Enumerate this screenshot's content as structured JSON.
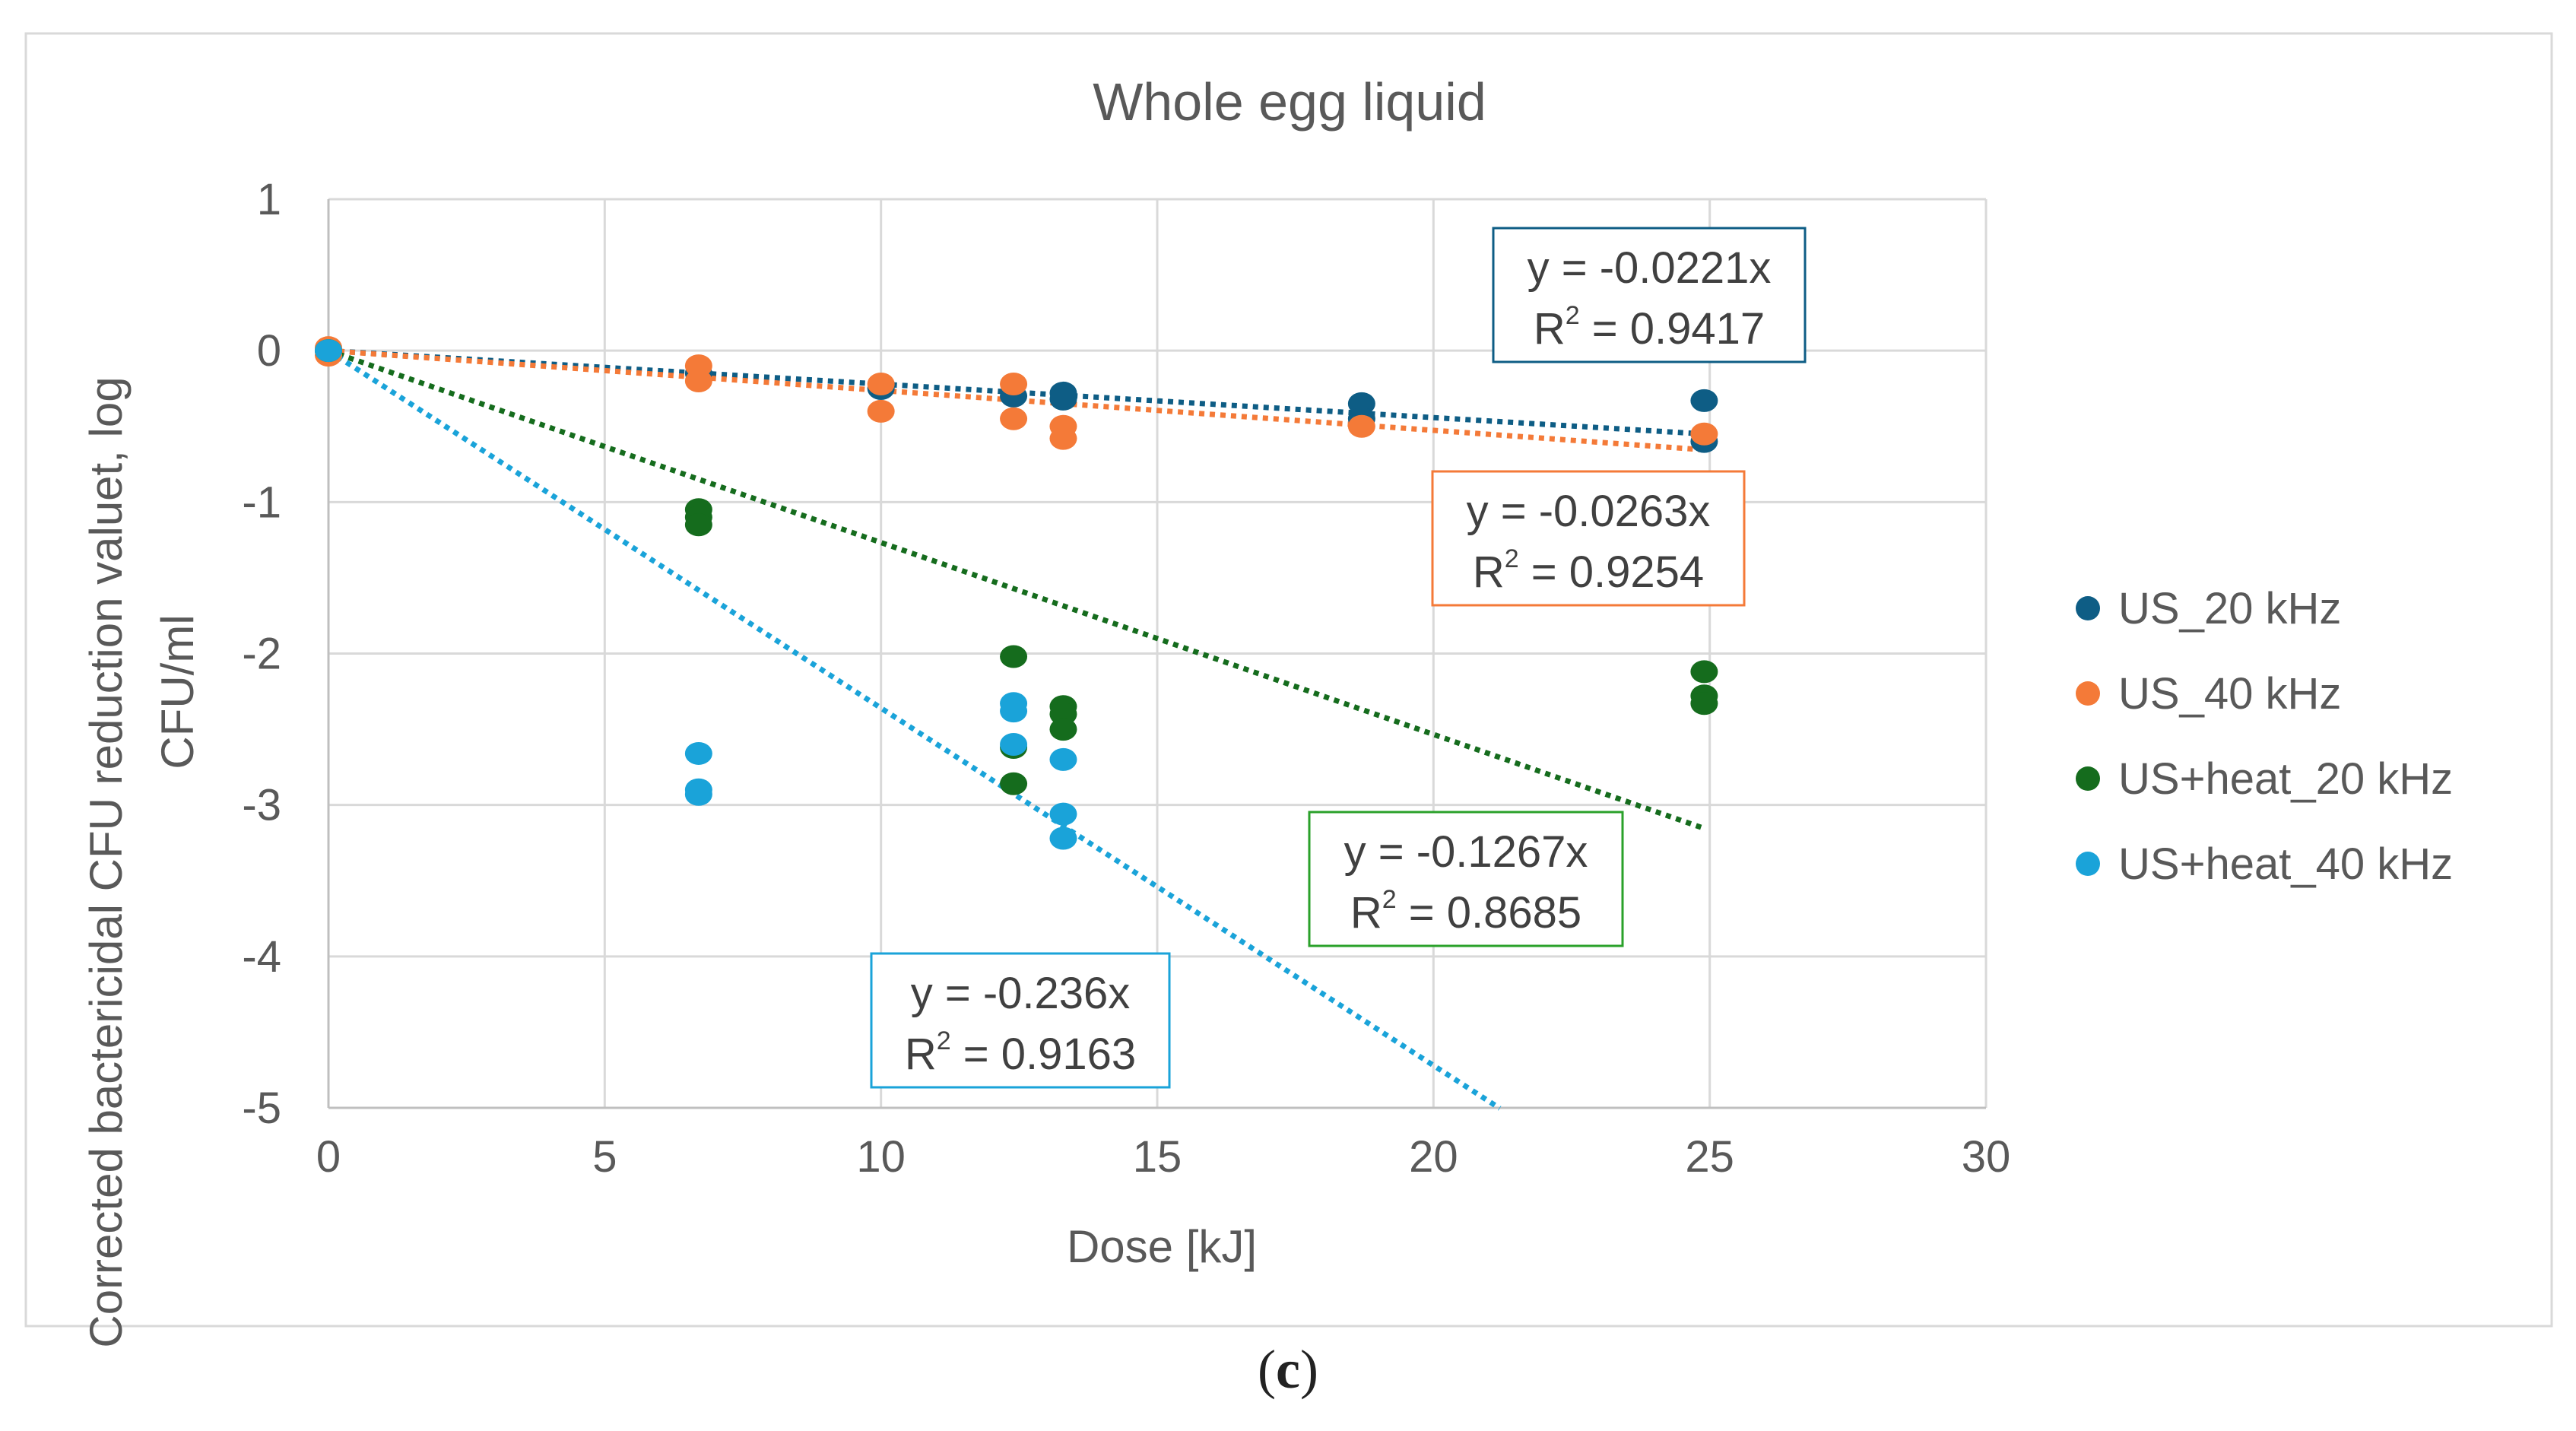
{
  "chart_data": {
    "type": "scatter",
    "title": "Whole egg liquid",
    "xlabel": "Dose [kJ]",
    "ylabel_lines": [
      "Corrected bactericidal CFU reduction valuet, log",
      "CFU/ml"
    ],
    "xlim": [
      0,
      30
    ],
    "ylim": [
      -5,
      1
    ],
    "xticks": [
      "0",
      "5",
      "10",
      "15",
      "20",
      "25",
      "30"
    ],
    "yticks": [
      "1",
      "0",
      "-1",
      "-2",
      "-3",
      "-4",
      "-5"
    ],
    "grid": true,
    "legend_position": "right",
    "series": [
      {
        "name": "US_20 kHz",
        "color": "#0e5d85",
        "slope": -0.0221,
        "trend_end_x": 24.9,
        "points": [
          [
            0,
            0
          ],
          [
            6.7,
            -0.15
          ],
          [
            10.0,
            -0.25
          ],
          [
            12.4,
            -0.3
          ],
          [
            13.3,
            -0.28
          ],
          [
            13.3,
            -0.32
          ],
          [
            18.7,
            -0.35
          ],
          [
            18.7,
            -0.45
          ],
          [
            24.9,
            -0.33
          ],
          [
            24.9,
            -0.6
          ]
        ],
        "eq_line": "y = -0.0221x",
        "r2_value": "0.9417"
      },
      {
        "name": "US_40 kHz",
        "color": "#f47a38",
        "slope": -0.0263,
        "trend_end_x": 24.9,
        "points": [
          [
            0,
            0.02
          ],
          [
            0,
            -0.03
          ],
          [
            6.7,
            -0.1
          ],
          [
            6.7,
            -0.2
          ],
          [
            10.0,
            -0.22
          ],
          [
            10.0,
            -0.4
          ],
          [
            12.4,
            -0.22
          ],
          [
            12.4,
            -0.45
          ],
          [
            13.3,
            -0.5
          ],
          [
            13.3,
            -0.58
          ],
          [
            18.7,
            -0.5
          ],
          [
            24.9,
            -0.55
          ]
        ],
        "eq_line": "y = -0.0263x",
        "r2_value": "0.9254"
      },
      {
        "name": "US+heat_20 kHz",
        "color": "#156c1d",
        "slope": -0.1267,
        "trend_end_x": 24.9,
        "points": [
          [
            0,
            0
          ],
          [
            6.7,
            -1.05
          ],
          [
            6.7,
            -1.1
          ],
          [
            6.7,
            -1.15
          ],
          [
            12.4,
            -2.02
          ],
          [
            12.4,
            -2.62
          ],
          [
            12.4,
            -2.86
          ],
          [
            13.3,
            -2.35
          ],
          [
            13.3,
            -2.4
          ],
          [
            13.3,
            -2.5
          ],
          [
            24.9,
            -2.12
          ],
          [
            24.9,
            -2.28
          ],
          [
            24.9,
            -2.33
          ]
        ],
        "eq_line": "y = -0.1267x",
        "r2_value": "0.8685"
      },
      {
        "name": "US+heat_40 kHz",
        "color": "#1aa3d9",
        "slope": -0.236,
        "trend_end_x": 21.2,
        "points": [
          [
            0,
            0
          ],
          [
            6.7,
            -2.66
          ],
          [
            6.7,
            -2.9
          ],
          [
            6.7,
            -2.93
          ],
          [
            12.4,
            -2.33
          ],
          [
            12.4,
            -2.38
          ],
          [
            12.4,
            -2.6
          ],
          [
            13.3,
            -2.7
          ],
          [
            13.3,
            -3.06
          ],
          [
            13.3,
            -3.22
          ]
        ],
        "eq_line": "y = -0.236x",
        "r2_value": "0.9163"
      }
    ]
  },
  "caption": "c"
}
